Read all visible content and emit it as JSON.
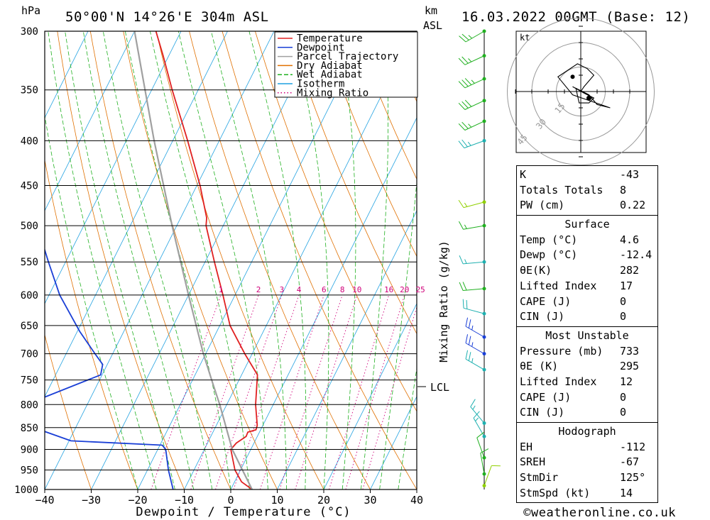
{
  "header": {
    "hpa_label": "hPa",
    "location": "50°00'N  14°26'E  304m  ASL",
    "km_label": "km",
    "asl_label": "ASL",
    "datetime": "16.03.2022  00GMT  (Base: 12)"
  },
  "footer": {
    "xlabel": "Dewpoint / Temperature (°C)",
    "copyright": "©weatheronline.co.uk",
    "mixing_axis_label": "Mixing Ratio (g/kg)",
    "lcl_label": "LCL"
  },
  "legend": [
    {
      "label": "Temperature",
      "color": "#e02020",
      "style": "solid"
    },
    {
      "label": "Dewpoint",
      "color": "#1a3fd6",
      "style": "solid"
    },
    {
      "label": "Parcel Trajectory",
      "color": "#a0a0a0",
      "style": "solid"
    },
    {
      "label": "Dry Adiabat",
      "color": "#e07000",
      "style": "solid"
    },
    {
      "label": "Wet Adiabat",
      "color": "#20b020",
      "style": "dashed"
    },
    {
      "label": "Isotherm",
      "color": "#1fa0e0",
      "style": "solid"
    },
    {
      "label": "Mixing Ratio",
      "color": "#d0007a",
      "style": "dotted"
    }
  ],
  "hodograph": {
    "unit_label": "kt",
    "ring_labels": [
      "15",
      "30",
      "45"
    ]
  },
  "stats": {
    "indices": [
      {
        "label": "K",
        "value": "-43"
      },
      {
        "label": "Totals Totals",
        "value": "8"
      },
      {
        "label": "PW (cm)",
        "value": "0.22"
      }
    ],
    "surface_title": "Surface",
    "surface": [
      {
        "label": "Temp (°C)",
        "value": "4.6"
      },
      {
        "label": "Dewp (°C)",
        "value": "-12.4"
      },
      {
        "label": "θE(K)",
        "value": "282"
      },
      {
        "label": "Lifted Index",
        "value": "17"
      },
      {
        "label": "CAPE (J)",
        "value": "0"
      },
      {
        "label": "CIN (J)",
        "value": "0"
      }
    ],
    "mu_title": "Most Unstable",
    "most_unstable": [
      {
        "label": "Pressure (mb)",
        "value": "733"
      },
      {
        "label": "θE (K)",
        "value": "295"
      },
      {
        "label": "Lifted Index",
        "value": "12"
      },
      {
        "label": "CAPE (J)",
        "value": "0"
      },
      {
        "label": "CIN (J)",
        "value": "0"
      }
    ],
    "hodo_title": "Hodograph",
    "hodograph": [
      {
        "label": "EH",
        "value": "-112"
      },
      {
        "label": "SREH",
        "value": "-67"
      },
      {
        "label": "StmDir",
        "value": "125°"
      },
      {
        "label": "StmSpd (kt)",
        "value": "14"
      }
    ]
  },
  "chart_data": {
    "type": "line",
    "title": "Skew-T log-P sounding",
    "xlabel": "Dewpoint / Temperature (°C)",
    "ylabel": "hPa",
    "x_ticks": [
      -40,
      -30,
      -20,
      -10,
      0,
      10,
      20,
      30,
      40
    ],
    "x_tick_labels": [
      "−40",
      "−30",
      "−20",
      "−10",
      "0",
      "10",
      "20",
      "30",
      "40"
    ],
    "pressure_levels": [
      300,
      350,
      400,
      450,
      500,
      550,
      600,
      650,
      700,
      750,
      800,
      850,
      900,
      950,
      1000
    ],
    "mixing_ratio_labels": [
      "1",
      "2",
      "3",
      "4",
      "6",
      "8",
      "10",
      "16",
      "20",
      "25"
    ],
    "mixing_ratio_values": [
      1,
      2,
      3,
      4,
      6,
      8,
      10,
      16,
      20,
      25
    ],
    "lcl_pressure": 760,
    "series": [
      {
        "name": "Temperature",
        "color": "#e02020",
        "points": [
          [
            1000,
            4.6
          ],
          [
            980,
            1.5
          ],
          [
            950,
            -1.2
          ],
          [
            900,
            -4.3
          ],
          [
            885,
            -3.8
          ],
          [
            870,
            -2.4
          ],
          [
            860,
            -2.5
          ],
          [
            855,
            -1.0
          ],
          [
            845,
            -1.2
          ],
          [
            800,
            -3.8
          ],
          [
            740,
            -6.6
          ],
          [
            700,
            -11.6
          ],
          [
            650,
            -17.8
          ],
          [
            600,
            -22.6
          ],
          [
            550,
            -28.0
          ],
          [
            500,
            -33.7
          ],
          [
            490,
            -34.4
          ],
          [
            450,
            -39.3
          ],
          [
            400,
            -46.8
          ],
          [
            350,
            -55.6
          ],
          [
            320,
            -61.2
          ],
          [
            300,
            -65.4
          ]
        ]
      },
      {
        "name": "Dewpoint",
        "color": "#1a3fd6",
        "points": [
          [
            1000,
            -12.4
          ],
          [
            950,
            -15.5
          ],
          [
            900,
            -18.3
          ],
          [
            890,
            -19.5
          ],
          [
            880,
            -39.6
          ],
          [
            850,
            -49.0
          ],
          [
            800,
            -53.2
          ],
          [
            740,
            -40.3
          ],
          [
            720,
            -41.0
          ],
          [
            700,
            -43.8
          ],
          [
            660,
            -49.5
          ],
          [
            600,
            -57.7
          ],
          [
            550,
            -63.7
          ],
          [
            500,
            -70.0
          ],
          [
            430,
            -80.4
          ],
          [
            400,
            -79.2
          ],
          [
            350,
            -86.1
          ],
          [
            320,
            -90.6
          ],
          [
            300,
            -96.8
          ]
        ]
      },
      {
        "name": "Parcel Trajectory",
        "color": "#a0a0a0",
        "points": [
          [
            1000,
            4.6
          ],
          [
            900,
            -4.0
          ],
          [
            800,
            -11.5
          ],
          [
            760,
            -15.0
          ],
          [
            700,
            -20.5
          ],
          [
            600,
            -30.0
          ],
          [
            500,
            -41.0
          ],
          [
            400,
            -54.0
          ],
          [
            300,
            -70.0
          ]
        ]
      }
    ],
    "wind_profile": [
      {
        "p": 300,
        "dir": 240,
        "spd": 25,
        "color": "#20b020"
      },
      {
        "p": 320,
        "dir": 245,
        "spd": 25,
        "color": "#20b020"
      },
      {
        "p": 340,
        "dir": 245,
        "spd": 35,
        "color": "#20b020"
      },
      {
        "p": 360,
        "dir": 245,
        "spd": 30,
        "color": "#20b020"
      },
      {
        "p": 380,
        "dir": 245,
        "spd": 25,
        "color": "#20b020"
      },
      {
        "p": 400,
        "dir": 250,
        "spd": 25,
        "color": "#1fb0b0"
      },
      {
        "p": 470,
        "dir": 255,
        "spd": 15,
        "color": "#90d000"
      },
      {
        "p": 500,
        "dir": 260,
        "spd": 15,
        "color": "#20b020"
      },
      {
        "p": 550,
        "dir": 265,
        "spd": 15,
        "color": "#1fb0b0"
      },
      {
        "p": 590,
        "dir": 265,
        "spd": 20,
        "color": "#20b020"
      },
      {
        "p": 630,
        "dir": 285,
        "spd": 20,
        "color": "#1fb0b0"
      },
      {
        "p": 670,
        "dir": 300,
        "spd": 25,
        "color": "#1a3fd6"
      },
      {
        "p": 700,
        "dir": 300,
        "spd": 25,
        "color": "#1a3fd6"
      },
      {
        "p": 730,
        "dir": 300,
        "spd": 25,
        "color": "#1fb0b0"
      },
      {
        "p": 840,
        "dir": 320,
        "spd": 15,
        "color": "#1fb0b0"
      },
      {
        "p": 870,
        "dir": 330,
        "spd": 15,
        "color": "#1fb0b0"
      },
      {
        "p": 920,
        "dir": 340,
        "spd": 10,
        "color": "#20b020"
      },
      {
        "p": 960,
        "dir": 350,
        "spd": 10,
        "color": "#20b020"
      },
      {
        "p": 990,
        "dir": 20,
        "spd": 10,
        "color": "#90d000"
      }
    ],
    "hodograph_points": [
      [
        -5,
        3
      ],
      [
        2,
        -1
      ],
      [
        8,
        -4
      ],
      [
        5,
        -7
      ],
      [
        -1,
        -7
      ],
      [
        -3,
        2
      ],
      [
        5,
        -2
      ],
      [
        10,
        -8
      ],
      [
        18,
        -10
      ],
      [
        -5,
        -2
      ],
      [
        -14,
        9
      ],
      [
        -2,
        17
      ],
      [
        4,
        14
      ],
      [
        8,
        10
      ],
      [
        2,
        3
      ],
      [
        0,
        0
      ]
    ]
  }
}
